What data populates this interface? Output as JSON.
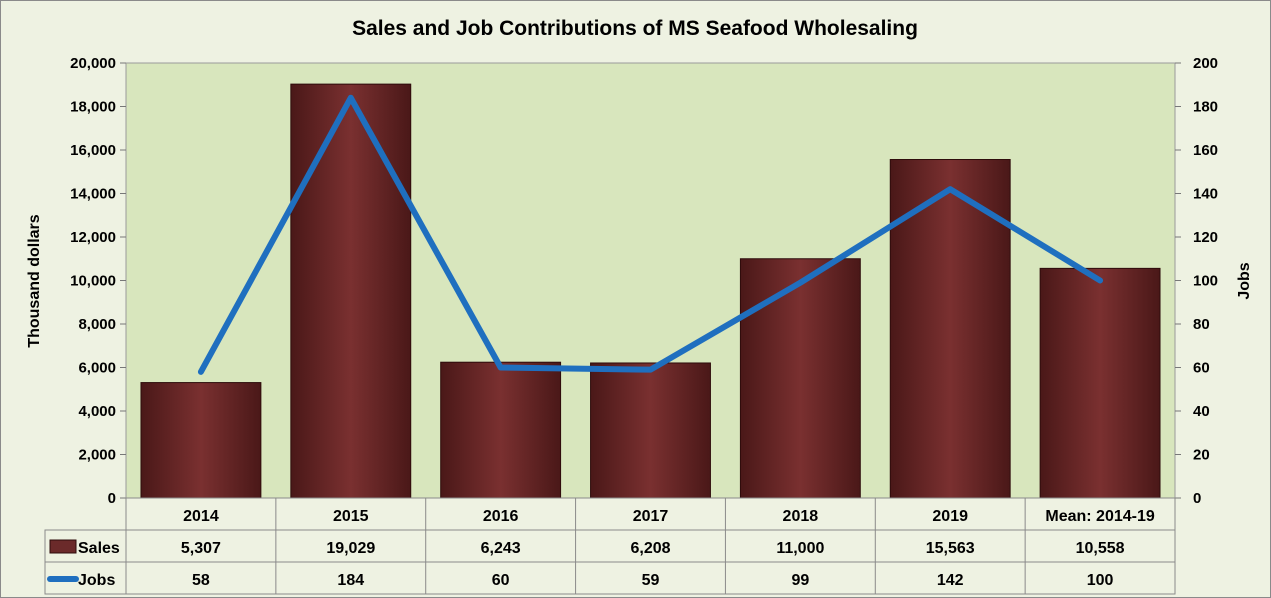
{
  "chart_data": {
    "type": "bar",
    "title": "Sales and Job Contributions of MS Seafood Wholesaling",
    "categories": [
      "2014",
      "2015",
      "2016",
      "2017",
      "2018",
      "2019",
      "Mean: 2014-19"
    ],
    "ylabel": "Thousand  dollars",
    "y2label": "Jobs",
    "ylim": [
      0,
      20000
    ],
    "y2lim": [
      0,
      200
    ],
    "yticks": [
      "0",
      "2,000",
      "4,000",
      "6,000",
      "8,000",
      "10,000",
      "12,000",
      "14,000",
      "16,000",
      "18,000",
      "20,000"
    ],
    "y2ticks": [
      "0",
      "20",
      "40",
      "60",
      "80",
      "100",
      "120",
      "140",
      "160",
      "180",
      "200"
    ],
    "grid": false,
    "legend": "data-table",
    "series": [
      {
        "name": "Sales",
        "type": "bar",
        "axis": "left",
        "color": "#6b2a2a",
        "values": [
          5307,
          19029,
          6243,
          6208,
          11000,
          15563,
          10558
        ],
        "labels": [
          "5,307",
          "19,029",
          "6,243",
          "6,208",
          "11,000",
          "15,563",
          "10,558"
        ]
      },
      {
        "name": "Jobs",
        "type": "line",
        "axis": "right",
        "color": "#1f6fbf",
        "values": [
          58,
          184,
          60,
          59,
          99,
          142,
          100
        ],
        "labels": [
          "58",
          "184",
          "60",
          "59",
          "99",
          "142",
          "100"
        ]
      }
    ]
  }
}
